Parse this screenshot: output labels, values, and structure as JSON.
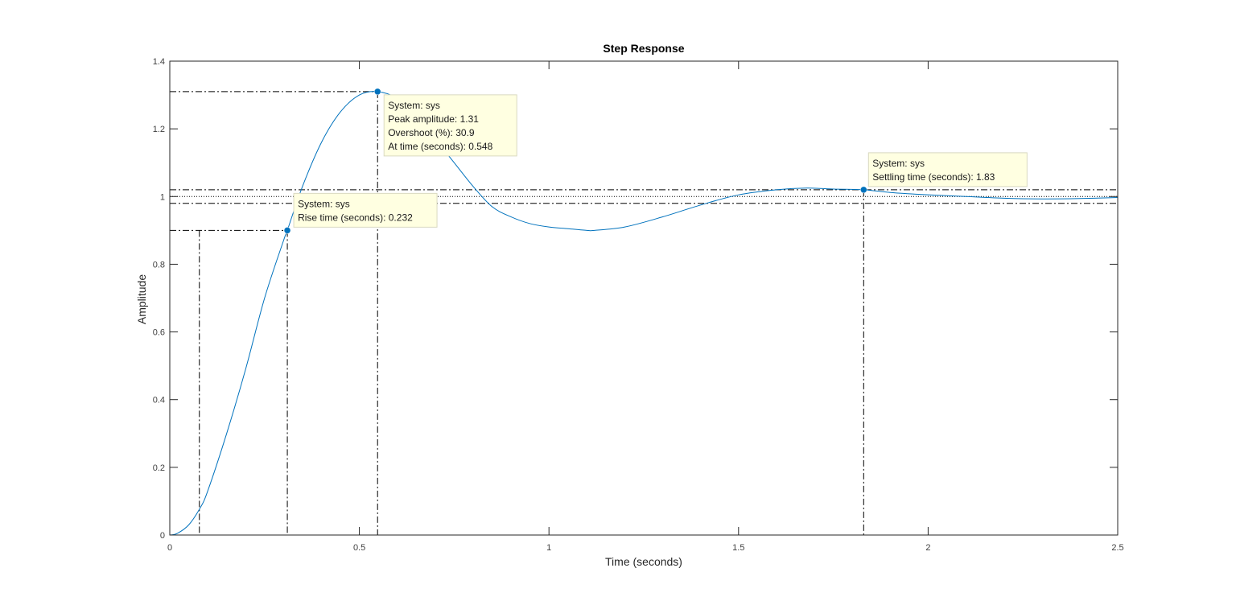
{
  "chart_data": {
    "type": "line",
    "title": "Step Response",
    "xlabel": "Time (seconds)",
    "ylabel": "Amplitude",
    "xlim": [
      0,
      2.5
    ],
    "ylim": [
      0,
      1.4
    ],
    "xticks": [
      0,
      0.5,
      1,
      1.5,
      2,
      2.5
    ],
    "xtick_labels": [
      "0",
      "0.5",
      "1",
      "1.5",
      "2",
      "2.5"
    ],
    "yticks": [
      0,
      0.2,
      0.4,
      0.6,
      0.8,
      1,
      1.2,
      1.4
    ],
    "ytick_labels": [
      "0",
      "0.2",
      "0.4",
      "0.6",
      "0.8",
      "1",
      "1.2",
      "1.4"
    ],
    "grid": false,
    "line_color": "#0072BD",
    "datatip_background": "#FFFFE1",
    "series": [
      {
        "x": [
          0,
          0.02,
          0.05,
          0.08,
          0.1,
          0.15,
          0.2,
          0.25,
          0.3,
          0.31,
          0.35,
          0.4,
          0.45,
          0.5,
          0.548,
          0.6,
          0.65,
          0.7,
          0.75,
          0.8,
          0.85,
          0.9,
          0.95,
          1.0,
          1.05,
          1.1,
          1.12,
          1.2,
          1.3,
          1.4,
          1.5,
          1.6,
          1.68,
          1.75,
          1.83,
          1.9,
          2.0,
          2.1,
          2.2,
          2.3,
          2.4,
          2.5
        ],
        "y": [
          0,
          0.005,
          0.03,
          0.08,
          0.13,
          0.3,
          0.49,
          0.7,
          0.87,
          0.9,
          1.03,
          1.16,
          1.25,
          1.3,
          1.31,
          1.29,
          1.24,
          1.17,
          1.1,
          1.03,
          0.97,
          0.94,
          0.92,
          0.91,
          0.905,
          0.9,
          0.9,
          0.91,
          0.94,
          0.975,
          1.005,
          1.02,
          1.025,
          1.022,
          1.02,
          1.012,
          1.005,
          1.0,
          0.995,
          0.993,
          0.994,
          0.997
        ]
      }
    ],
    "reference_lines": {
      "steady_state": 1.0,
      "settling_band": [
        0.98,
        1.02
      ],
      "rise_band": [
        0.1,
        0.9
      ],
      "rise_start_x": 0.078,
      "rise_end_x": 0.31,
      "peak": [
        0.548,
        1.31
      ],
      "settling": [
        1.83,
        1.02
      ]
    },
    "datatips": [
      {
        "name": "rise",
        "x": 0.31,
        "y": 0.9,
        "lines": [
          "System: sys",
          "Rise time (seconds): 0.232"
        ]
      },
      {
        "name": "peak",
        "x": 0.548,
        "y": 1.31,
        "lines": [
          "System: sys",
          "Peak amplitude: 1.31",
          "Overshoot (%): 30.9",
          "At time (seconds): 0.548"
        ]
      },
      {
        "name": "settling",
        "x": 1.83,
        "y": 1.02,
        "lines": [
          "System: sys",
          "Settling time (seconds): 1.83"
        ]
      }
    ]
  }
}
